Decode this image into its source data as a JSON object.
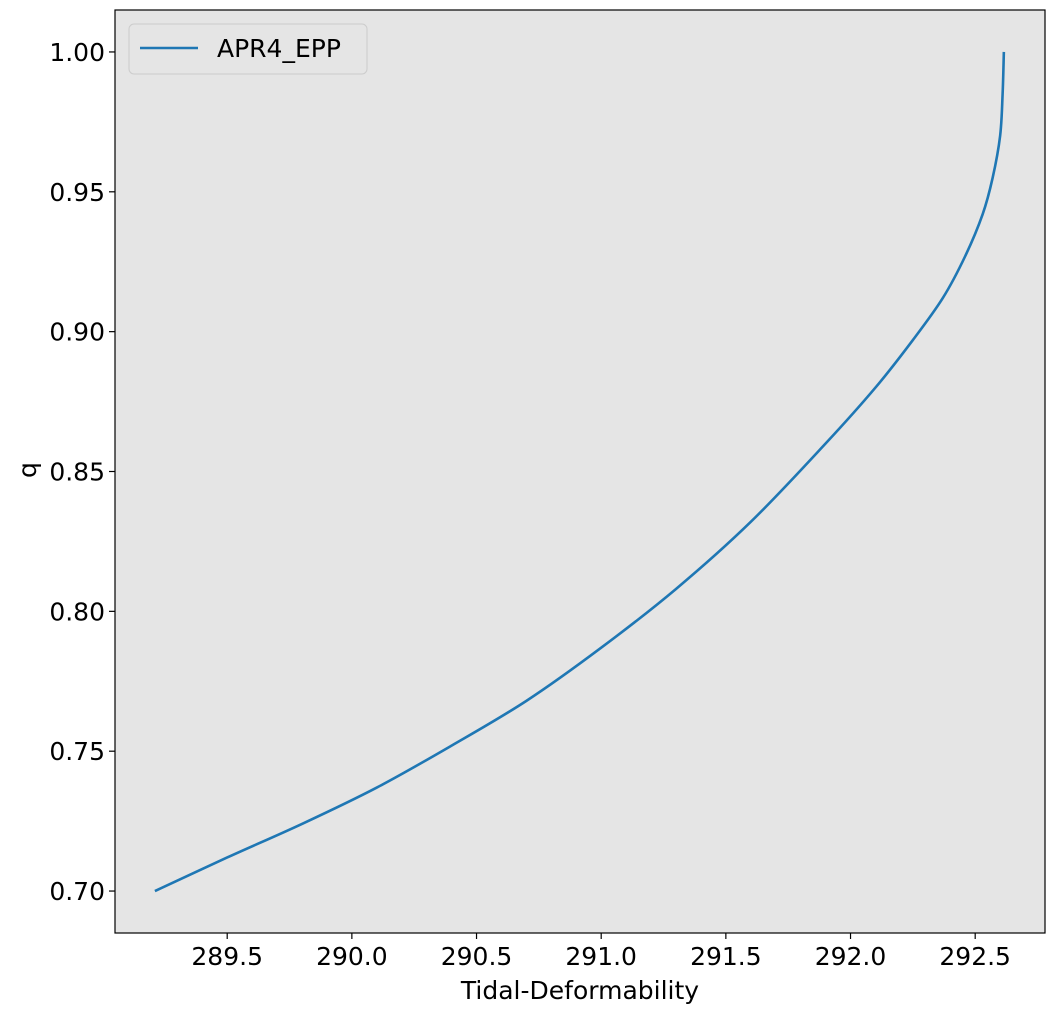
{
  "chart_data": {
    "type": "line",
    "xlabel": "Tidal-Deformability",
    "ylabel": "q",
    "xlim": [
      289.05,
      292.78
    ],
    "ylim": [
      0.685,
      1.015
    ],
    "xticks": [
      "289.5",
      "290.0",
      "290.5",
      "291.0",
      "291.5",
      "292.0",
      "292.5"
    ],
    "yticks": [
      "0.70",
      "0.75",
      "0.80",
      "0.85",
      "0.90",
      "0.95",
      "1.00"
    ],
    "grid": false,
    "legend_position": "top-left",
    "background": "#e5e5e5",
    "series": [
      {
        "name": "APR4_EPP",
        "color": "#1f77b4",
        "x": [
          289.21,
          289.5,
          289.8,
          290.1,
          290.4,
          290.7,
          291.0,
          291.3,
          291.6,
          291.9,
          292.1,
          292.25,
          292.37,
          292.46,
          292.53,
          292.57,
          292.6,
          292.61,
          292.615
        ],
        "y": [
          0.7,
          0.712,
          0.724,
          0.737,
          0.752,
          0.768,
          0.787,
          0.808,
          0.832,
          0.86,
          0.88,
          0.897,
          0.912,
          0.927,
          0.942,
          0.955,
          0.97,
          0.985,
          1.0
        ]
      }
    ]
  }
}
